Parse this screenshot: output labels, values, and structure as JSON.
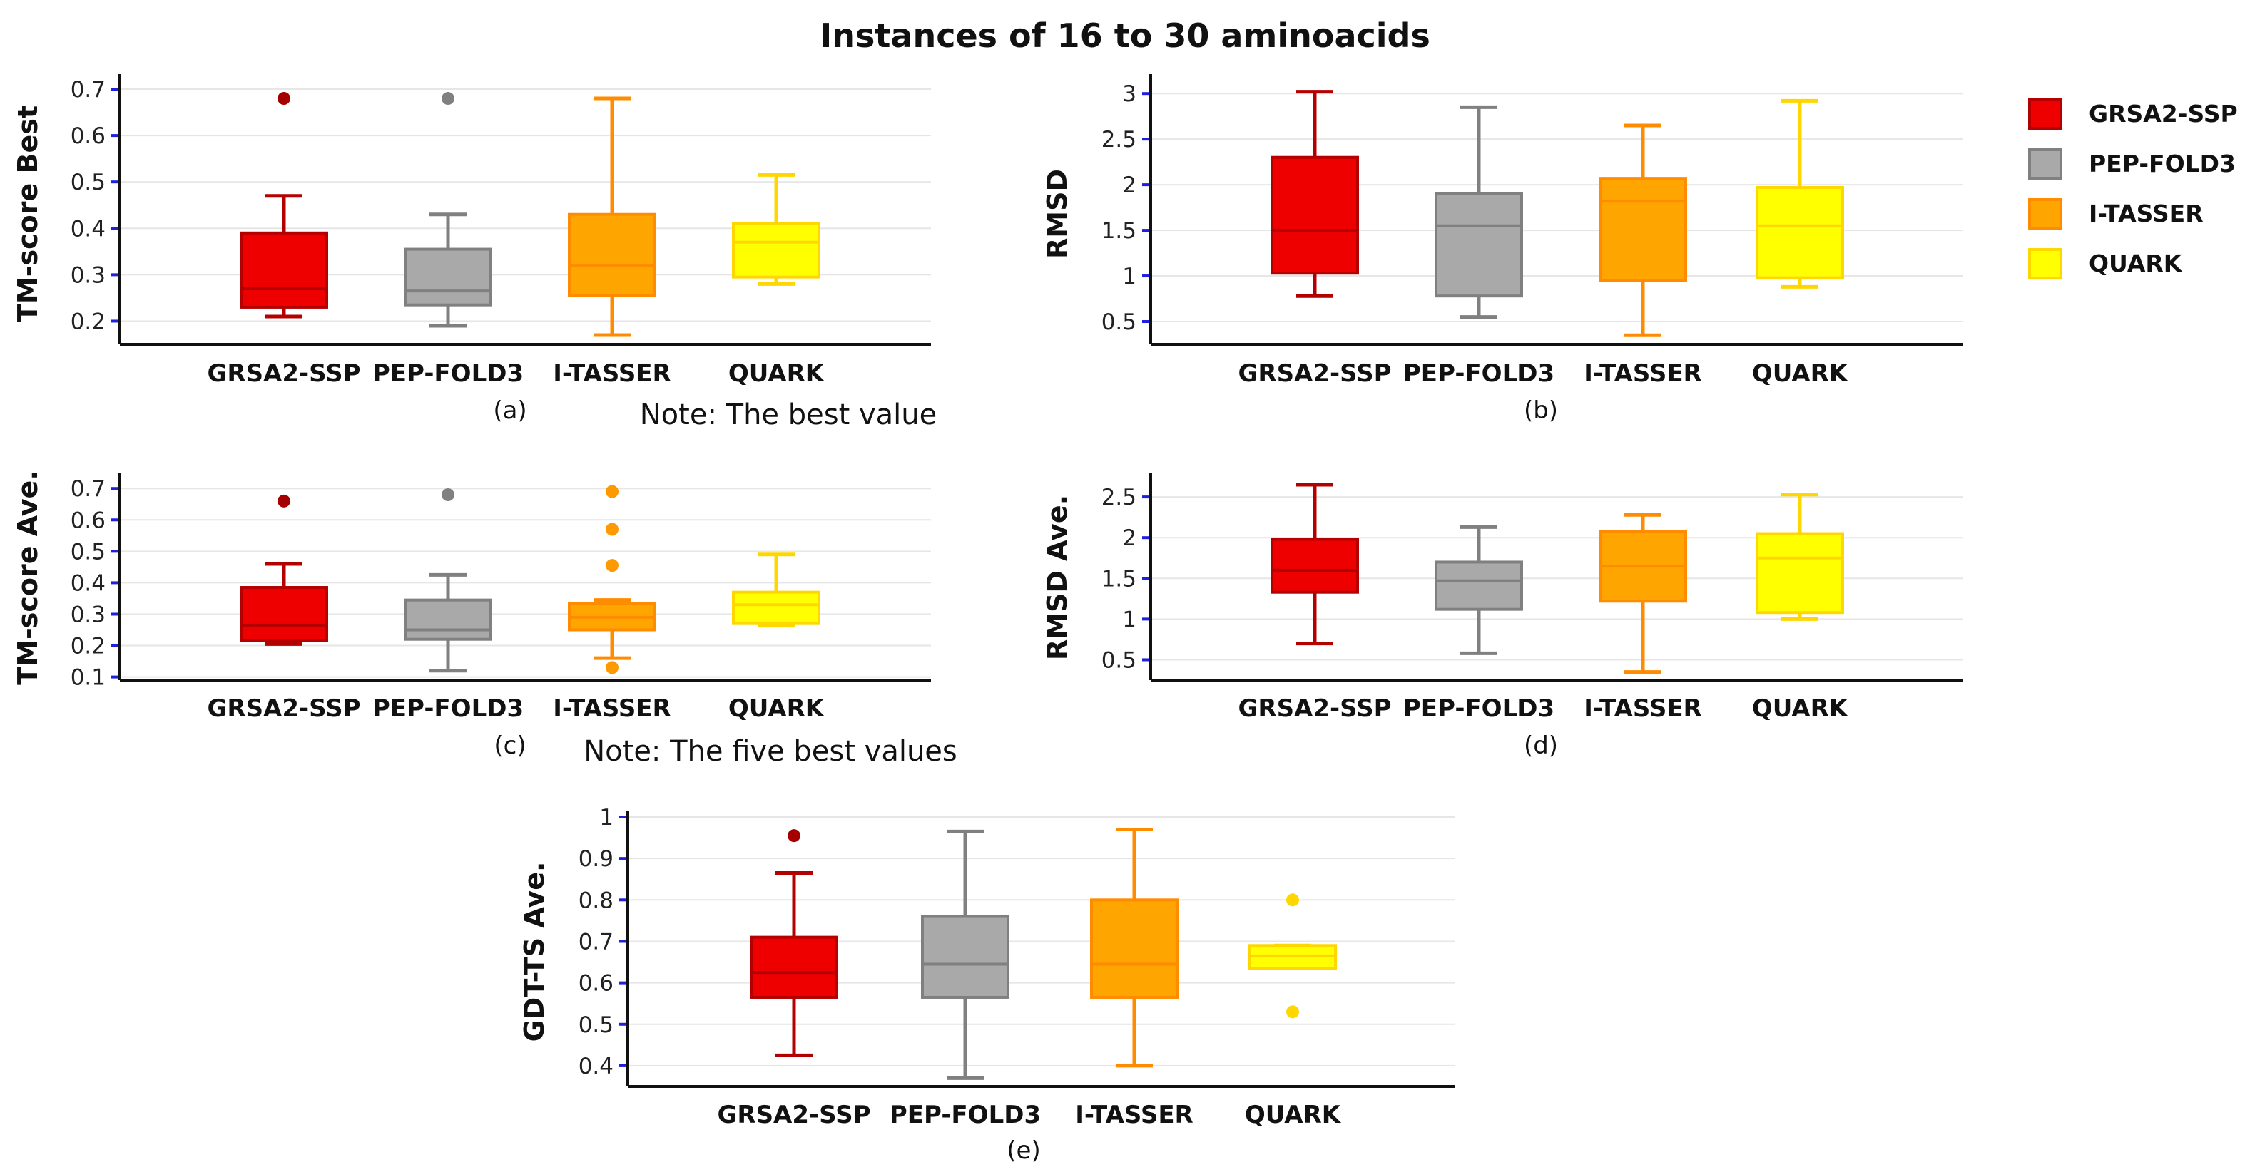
{
  "figure": {
    "title": "Instances of 16 to 30 aminoacids"
  },
  "legend": {
    "entries": [
      {
        "label": "GRSA2-SSP",
        "fill": "#ee0000",
        "stroke": "#b30000"
      },
      {
        "label": "PEP-FOLD3",
        "fill": "#a9a9a9",
        "stroke": "#808080"
      },
      {
        "label": "I-TASSER",
        "fill": "#ffa500",
        "stroke": "#ff8c00"
      },
      {
        "label": "QUARK",
        "fill": "#ffff00",
        "stroke": "#ffd700"
      }
    ]
  },
  "chart_data": [
    {
      "id": "a",
      "type": "box",
      "caption": "(a)",
      "note": "Note: The best value",
      "ylabel": "TM-score Best",
      "ylim": [
        0.15,
        0.72
      ],
      "ticks": [
        0.2,
        0.3,
        0.4,
        0.5,
        0.6,
        0.7
      ],
      "categories": [
        "GRSA2-SSP",
        "PEP-FOLD3",
        "I-TASSER",
        "QUARK"
      ],
      "series": [
        {
          "name": "GRSA2-SSP",
          "min": 0.21,
          "q1": 0.23,
          "median": 0.27,
          "q3": 0.39,
          "max": 0.47,
          "outliers": [
            0.68
          ]
        },
        {
          "name": "PEP-FOLD3",
          "min": 0.19,
          "q1": 0.235,
          "median": 0.265,
          "q3": 0.355,
          "max": 0.43,
          "outliers": [
            0.68
          ]
        },
        {
          "name": "I-TASSER",
          "min": 0.17,
          "q1": 0.255,
          "median": 0.32,
          "q3": 0.43,
          "max": 0.68,
          "outliers": []
        },
        {
          "name": "QUARK",
          "min": 0.28,
          "q1": 0.295,
          "median": 0.37,
          "q3": 0.41,
          "max": 0.515,
          "outliers": []
        }
      ]
    },
    {
      "id": "b",
      "type": "box",
      "caption": "(b)",
      "note": "",
      "ylabel": "RMSD",
      "ylim": [
        0.25,
        3.15
      ],
      "ticks": [
        0.5,
        1,
        1.5,
        2,
        2.5,
        3
      ],
      "categories": [
        "GRSA2-SSP",
        "PEP-FOLD3",
        "I-TASSER",
        "QUARK"
      ],
      "series": [
        {
          "name": "GRSA2-SSP",
          "min": 0.78,
          "q1": 1.03,
          "median": 1.5,
          "q3": 2.3,
          "max": 3.02,
          "outliers": []
        },
        {
          "name": "PEP-FOLD3",
          "min": 0.55,
          "q1": 0.78,
          "median": 1.55,
          "q3": 1.9,
          "max": 2.85,
          "outliers": []
        },
        {
          "name": "I-TASSER",
          "min": 0.35,
          "q1": 0.95,
          "median": 1.82,
          "q3": 2.07,
          "max": 2.65,
          "outliers": []
        },
        {
          "name": "QUARK",
          "min": 0.88,
          "q1": 0.98,
          "median": 1.55,
          "q3": 1.97,
          "max": 2.92,
          "outliers": []
        }
      ]
    },
    {
      "id": "c",
      "type": "box",
      "caption": "(c)",
      "note": "Note: The five best values",
      "ylabel": "TM-score Ave.",
      "ylim": [
        0.09,
        0.73
      ],
      "ticks": [
        0.1,
        0.2,
        0.3,
        0.4,
        0.5,
        0.6,
        0.7
      ],
      "categories": [
        "GRSA2-SSP",
        "PEP-FOLD3",
        "I-TASSER",
        "QUARK"
      ],
      "series": [
        {
          "name": "GRSA2-SSP",
          "min": 0.205,
          "q1": 0.215,
          "median": 0.265,
          "q3": 0.385,
          "max": 0.46,
          "outliers": [
            0.66
          ]
        },
        {
          "name": "PEP-FOLD3",
          "min": 0.12,
          "q1": 0.22,
          "median": 0.25,
          "q3": 0.345,
          "max": 0.425,
          "outliers": [
            0.68
          ]
        },
        {
          "name": "I-TASSER",
          "min": 0.16,
          "q1": 0.25,
          "median": 0.29,
          "q3": 0.335,
          "max": 0.345,
          "outliers": [
            0.69,
            0.57,
            0.455,
            0.13
          ]
        },
        {
          "name": "QUARK",
          "min": 0.265,
          "q1": 0.27,
          "median": 0.33,
          "q3": 0.37,
          "max": 0.49,
          "outliers": []
        }
      ]
    },
    {
      "id": "d",
      "type": "box",
      "caption": "(d)",
      "note": "",
      "ylabel": "RMSD Ave.",
      "ylim": [
        0.25,
        2.72
      ],
      "ticks": [
        0.5,
        1,
        1.5,
        2,
        2.5
      ],
      "categories": [
        "GRSA2-SSP",
        "PEP-FOLD3",
        "I-TASSER",
        "QUARK"
      ],
      "series": [
        {
          "name": "GRSA2-SSP",
          "min": 0.7,
          "q1": 1.33,
          "median": 1.6,
          "q3": 1.98,
          "max": 2.65,
          "outliers": []
        },
        {
          "name": "PEP-FOLD3",
          "min": 0.58,
          "q1": 1.12,
          "median": 1.47,
          "q3": 1.7,
          "max": 2.13,
          "outliers": []
        },
        {
          "name": "I-TASSER",
          "min": 0.35,
          "q1": 1.22,
          "median": 1.65,
          "q3": 2.08,
          "max": 2.28,
          "outliers": []
        },
        {
          "name": "QUARK",
          "min": 1.0,
          "q1": 1.08,
          "median": 1.75,
          "q3": 2.05,
          "max": 2.53,
          "outliers": []
        }
      ]
    },
    {
      "id": "e",
      "type": "box",
      "caption": "(e)",
      "note": "",
      "ylabel": "GDT-TS Ave.",
      "ylim": [
        0.35,
        1.0
      ],
      "ticks": [
        0.4,
        0.5,
        0.6,
        0.7,
        0.8,
        0.9,
        1
      ],
      "categories": [
        "GRSA2-SSP",
        "PEP-FOLD3",
        "I-TASSER",
        "QUARK"
      ],
      "series": [
        {
          "name": "GRSA2-SSP",
          "min": 0.425,
          "q1": 0.565,
          "median": 0.625,
          "q3": 0.71,
          "max": 0.865,
          "outliers": [
            0.955
          ]
        },
        {
          "name": "PEP-FOLD3",
          "min": 0.37,
          "q1": 0.565,
          "median": 0.645,
          "q3": 0.76,
          "max": 0.965,
          "outliers": []
        },
        {
          "name": "I-TASSER",
          "min": 0.4,
          "q1": 0.565,
          "median": 0.645,
          "q3": 0.8,
          "max": 0.97,
          "outliers": []
        },
        {
          "name": "QUARK",
          "min": 0.635,
          "q1": 0.635,
          "median": 0.665,
          "q3": 0.69,
          "max": 0.69,
          "outliers": [
            0.8,
            0.53
          ]
        }
      ]
    }
  ]
}
